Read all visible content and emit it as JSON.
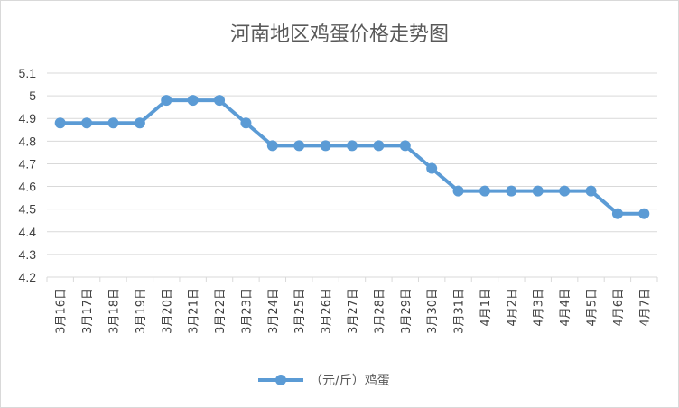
{
  "chart_data": {
    "type": "line",
    "title": "河南地区鸡蛋价格走势图",
    "categories": [
      "3月16日",
      "3月17日",
      "3月18日",
      "3月19日",
      "3月20日",
      "3月21日",
      "3月22日",
      "3月23日",
      "3月24日",
      "3月25日",
      "3月26日",
      "3月27日",
      "3月28日",
      "3月29日",
      "3月30日",
      "3月31日",
      "4月1日",
      "4月2日",
      "4月3日",
      "4月4日",
      "4月5日",
      "4月6日",
      "4月7日"
    ],
    "series": [
      {
        "name": "（元/斤）鸡蛋",
        "color": "#5b9bd5",
        "values": [
          4.88,
          4.88,
          4.88,
          4.88,
          4.98,
          4.98,
          4.98,
          4.88,
          4.78,
          4.78,
          4.78,
          4.78,
          4.78,
          4.78,
          4.68,
          4.58,
          4.58,
          4.58,
          4.58,
          4.58,
          4.58,
          4.48,
          4.48
        ]
      }
    ],
    "ylim": [
      4.2,
      5.1
    ],
    "yticks": [
      "4.2",
      "4.3",
      "4.4",
      "4.5",
      "4.6",
      "4.7",
      "4.8",
      "4.9",
      "5",
      "5.1"
    ],
    "grid": true,
    "legend_position": "bottom"
  }
}
